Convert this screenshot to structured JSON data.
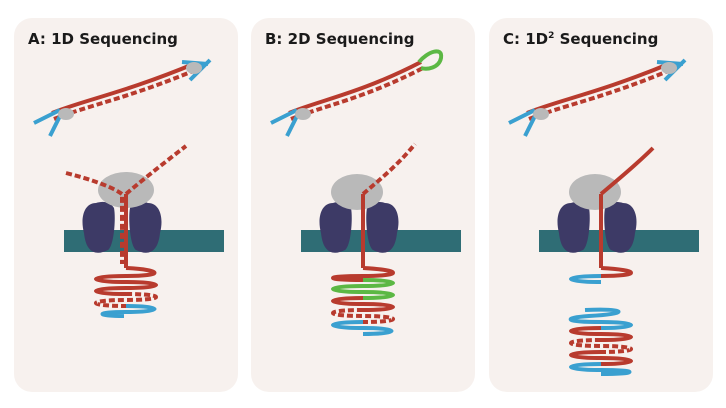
{
  "panels": [
    {
      "title_prefix": "A: 1D",
      "title_sup": "",
      "title_suffix": " Sequencing"
    },
    {
      "title_prefix": "B: 2D",
      "title_sup": "",
      "title_suffix": " Sequencing"
    },
    {
      "title_prefix": "C: 1D",
      "title_sup": "2",
      "title_suffix": " Sequencing"
    }
  ],
  "colors": {
    "template_strand": "#b83b2e",
    "complement_strand": "#3aa0d0",
    "hairpin": "#5cb844",
    "motor_protein": "#b9b9b9",
    "pore_protein": "#3d3a66",
    "membrane": "#2f6d75",
    "panel_background": "#f7f1ee"
  }
}
